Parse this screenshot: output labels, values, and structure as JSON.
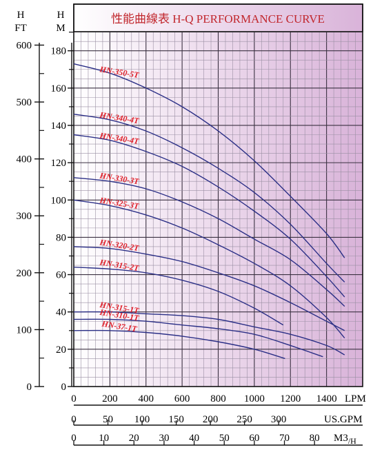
{
  "chart_data": {
    "type": "line",
    "title": "性能曲線表 H-Q PERFORMANCE CURVE",
    "left_axes": [
      {
        "unit_top": "H",
        "unit_bottom": "FT",
        "range": [
          0,
          672
        ],
        "ticks": [
          0,
          100,
          200,
          300,
          400,
          500,
          600
        ]
      },
      {
        "unit_top": "H",
        "unit_bottom": "M",
        "range": [
          0,
          205
        ],
        "ticks": [
          0,
          20,
          40,
          60,
          80,
          100,
          120,
          140,
          160,
          180
        ]
      }
    ],
    "bottom_axes": [
      {
        "unit": "LPM",
        "range": [
          0,
          1600
        ],
        "ticks": [
          0,
          200,
          400,
          600,
          800,
          1000,
          1200,
          1400
        ]
      },
      {
        "unit": "US.GPM",
        "range": [
          0,
          423
        ],
        "ticks": [
          0,
          50,
          100,
          150,
          200,
          250,
          300
        ]
      },
      {
        "unit": "M3/H",
        "unit_main": "M3",
        "unit_sub": "/H",
        "range": [
          0,
          96
        ],
        "ticks": [
          0,
          10,
          20,
          30,
          40,
          50,
          60,
          70,
          80
        ]
      }
    ],
    "xlim": [
      0,
      1600
    ],
    "ylim": [
      0,
      205
    ],
    "grid": true,
    "series": [
      {
        "name": "HN-350-5T",
        "x": [
          0,
          200,
          400,
          600,
          800,
          1000,
          1200,
          1400,
          1500
        ],
        "y": [
          173,
          168,
          160,
          150,
          137,
          121,
          102,
          82,
          69
        ]
      },
      {
        "name": "HN-340-4T",
        "x": [
          0,
          200,
          400,
          600,
          800,
          1000,
          1200,
          1400,
          1500
        ],
        "y": [
          146,
          143,
          137,
          128,
          117,
          104,
          87,
          66,
          56
        ]
      },
      {
        "name": "HN-340-4T",
        "x": [
          0,
          200,
          400,
          600,
          800,
          1000,
          1200,
          1400,
          1500
        ],
        "y": [
          135,
          132,
          126,
          118,
          107,
          94,
          79,
          59,
          48
        ]
      },
      {
        "name": "HN-330-3T",
        "x": [
          0,
          200,
          400,
          600,
          800,
          1000,
          1200,
          1400,
          1500
        ],
        "y": [
          112,
          110,
          106,
          99,
          90,
          79,
          68,
          52,
          43
        ]
      },
      {
        "name": "HN-325-3T",
        "x": [
          0,
          200,
          400,
          600,
          800,
          1000,
          1200,
          1400,
          1500
        ],
        "y": [
          100,
          97,
          92,
          85,
          76,
          66,
          54,
          37,
          26
        ]
      },
      {
        "name": "HN-320-2T",
        "x": [
          0,
          200,
          400,
          600,
          800,
          1000,
          1200,
          1400,
          1500
        ],
        "y": [
          75,
          74,
          71,
          67,
          61,
          54,
          45,
          35,
          30
        ]
      },
      {
        "name": "HN-315-2T",
        "x": [
          0,
          200,
          400,
          600,
          800,
          1000,
          1160
        ],
        "y": [
          64,
          63,
          61,
          57,
          51,
          42,
          33
        ]
      },
      {
        "name": "HN-315-1T",
        "x": [
          0,
          200,
          400,
          600,
          800,
          1000,
          1200,
          1400,
          1500
        ],
        "y": [
          40,
          40,
          39,
          38,
          36,
          32,
          28,
          22,
          17
        ]
      },
      {
        "name": "HN-310-1T",
        "x": [
          0,
          200,
          400,
          600,
          800,
          1000,
          1200,
          1380
        ],
        "y": [
          36,
          36,
          35,
          33,
          31,
          28,
          22,
          16
        ]
      },
      {
        "name": "HN-37-1T",
        "x": [
          0,
          200,
          400,
          600,
          800,
          1000,
          1170
        ],
        "y": [
          30,
          30,
          29,
          27,
          24,
          20,
          15
        ]
      }
    ]
  },
  "style": {
    "curve_color": "#2b2f86",
    "label_color": "#e0202a",
    "axis_color": "#111111",
    "grid_minor": "#9a8fa3",
    "grid_major": "#3a3040",
    "bg_left": "#ffffff",
    "bg_right": "#d9b3d9"
  }
}
